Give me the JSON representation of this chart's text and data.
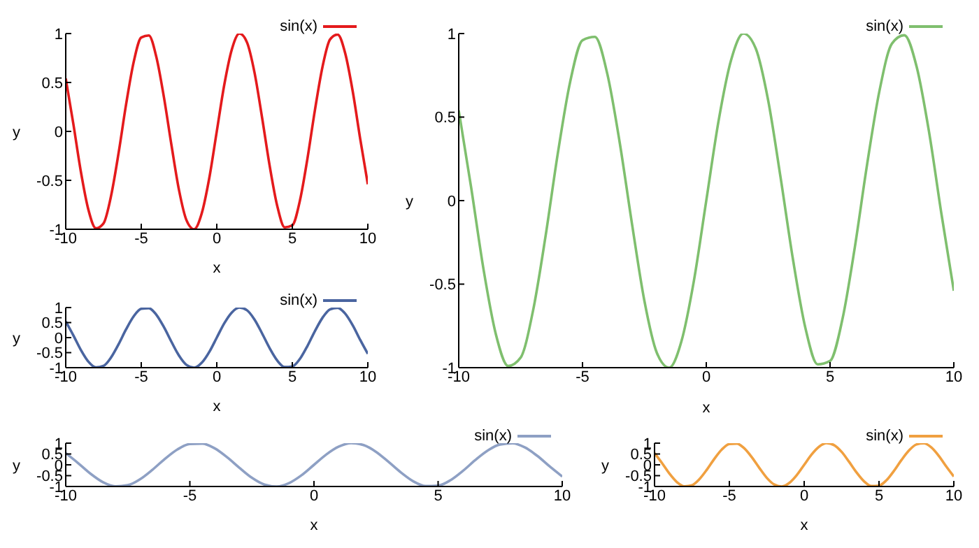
{
  "chart_data": [
    {
      "type": "line",
      "xlabel": "x",
      "ylabel": "y",
      "x": [
        -10,
        -9.5,
        -9,
        -8.5,
        -8,
        -7.5,
        -7,
        -6.5,
        -6,
        -5.5,
        -5,
        -4.5,
        -4,
        -3.5,
        -3,
        -2.5,
        -2,
        -1.5,
        -1,
        -0.5,
        0,
        0.5,
        1,
        1.5,
        2,
        2.5,
        3,
        3.5,
        4,
        4.5,
        5,
        5.5,
        6,
        6.5,
        7,
        7.5,
        8,
        8.5,
        9,
        9.5,
        10
      ],
      "xlim": [
        -10,
        10
      ],
      "ylim": [
        -1,
        1
      ],
      "xticks": [
        -10,
        -5,
        0,
        5,
        10
      ],
      "yticks": [
        -1,
        -0.5,
        0,
        0.5,
        1
      ],
      "legend": "top right",
      "series": [
        {
          "name": "sin(x)",
          "color": "#e41a1c",
          "values": [
            0.54,
            0.08,
            -0.41,
            -0.8,
            -0.99,
            -0.94,
            -0.66,
            -0.22,
            0.28,
            0.71,
            0.96,
            0.98,
            0.76,
            0.35,
            -0.14,
            -0.6,
            -0.91,
            -1,
            -0.84,
            -0.48,
            0,
            0.48,
            0.84,
            1,
            0.91,
            0.6,
            0.14,
            -0.35,
            -0.76,
            -0.98,
            -0.96,
            -0.71,
            -0.28,
            0.22,
            0.66,
            0.94,
            0.99,
            0.8,
            0.41,
            -0.08,
            -0.54
          ]
        }
      ]
    },
    {
      "type": "line",
      "xlabel": "x",
      "ylabel": "y",
      "x": [
        -10,
        -9.5,
        -9,
        -8.5,
        -8,
        -7.5,
        -7,
        -6.5,
        -6,
        -5.5,
        -5,
        -4.5,
        -4,
        -3.5,
        -3,
        -2.5,
        -2,
        -1.5,
        -1,
        -0.5,
        0,
        0.5,
        1,
        1.5,
        2,
        2.5,
        3,
        3.5,
        4,
        4.5,
        5,
        5.5,
        6,
        6.5,
        7,
        7.5,
        8,
        8.5,
        9,
        9.5,
        10
      ],
      "xlim": [
        -10,
        10
      ],
      "ylim": [
        -1,
        1
      ],
      "xticks": [
        -10,
        -5,
        0,
        5,
        10
      ],
      "yticks": [
        -1,
        -0.5,
        0,
        0.5,
        1
      ],
      "legend": "top right",
      "series": [
        {
          "name": "sin(x)",
          "color": "#4a65a0",
          "values": [
            0.54,
            0.08,
            -0.41,
            -0.8,
            -0.99,
            -0.94,
            -0.66,
            -0.22,
            0.28,
            0.71,
            0.96,
            0.98,
            0.76,
            0.35,
            -0.14,
            -0.6,
            -0.91,
            -1,
            -0.84,
            -0.48,
            0,
            0.48,
            0.84,
            1,
            0.91,
            0.6,
            0.14,
            -0.35,
            -0.76,
            -0.98,
            -0.96,
            -0.71,
            -0.28,
            0.22,
            0.66,
            0.94,
            0.99,
            0.8,
            0.41,
            -0.08,
            -0.54
          ]
        }
      ]
    },
    {
      "type": "line",
      "xlabel": "x",
      "ylabel": "y",
      "x": [
        -10,
        -9.5,
        -9,
        -8.5,
        -8,
        -7.5,
        -7,
        -6.5,
        -6,
        -5.5,
        -5,
        -4.5,
        -4,
        -3.5,
        -3,
        -2.5,
        -2,
        -1.5,
        -1,
        -0.5,
        0,
        0.5,
        1,
        1.5,
        2,
        2.5,
        3,
        3.5,
        4,
        4.5,
        5,
        5.5,
        6,
        6.5,
        7,
        7.5,
        8,
        8.5,
        9,
        9.5,
        10
      ],
      "xlim": [
        -10,
        10
      ],
      "ylim": [
        -1,
        1
      ],
      "xticks": [
        -10,
        -5,
        0,
        5,
        10
      ],
      "yticks": [
        -1,
        -0.5,
        0,
        0.5,
        1
      ],
      "legend": "top right",
      "series": [
        {
          "name": "sin(x)",
          "color": "#7fbf6e",
          "values": [
            0.54,
            0.08,
            -0.41,
            -0.8,
            -0.99,
            -0.94,
            -0.66,
            -0.22,
            0.28,
            0.71,
            0.96,
            0.98,
            0.76,
            0.35,
            -0.14,
            -0.6,
            -0.91,
            -1,
            -0.84,
            -0.48,
            0,
            0.48,
            0.84,
            1,
            0.91,
            0.6,
            0.14,
            -0.35,
            -0.76,
            -0.98,
            -0.96,
            -0.71,
            -0.28,
            0.22,
            0.66,
            0.94,
            0.99,
            0.8,
            0.41,
            -0.08,
            -0.54
          ]
        }
      ]
    },
    {
      "type": "line",
      "xlabel": "x",
      "ylabel": "y",
      "x": [
        -10,
        -9.5,
        -9,
        -8.5,
        -8,
        -7.5,
        -7,
        -6.5,
        -6,
        -5.5,
        -5,
        -4.5,
        -4,
        -3.5,
        -3,
        -2.5,
        -2,
        -1.5,
        -1,
        -0.5,
        0,
        0.5,
        1,
        1.5,
        2,
        2.5,
        3,
        3.5,
        4,
        4.5,
        5,
        5.5,
        6,
        6.5,
        7,
        7.5,
        8,
        8.5,
        9,
        9.5,
        10
      ],
      "xlim": [
        -10,
        10
      ],
      "ylim": [
        -1,
        1
      ],
      "xticks": [
        -10,
        -5,
        0,
        5,
        10
      ],
      "yticks": [
        -1,
        -0.5,
        0,
        0.5,
        1
      ],
      "legend": "top right",
      "series": [
        {
          "name": "sin(x)",
          "color": "#8ea0c4",
          "values": [
            0.54,
            0.08,
            -0.41,
            -0.8,
            -0.99,
            -0.94,
            -0.66,
            -0.22,
            0.28,
            0.71,
            0.96,
            0.98,
            0.76,
            0.35,
            -0.14,
            -0.6,
            -0.91,
            -1,
            -0.84,
            -0.48,
            0,
            0.48,
            0.84,
            1,
            0.91,
            0.6,
            0.14,
            -0.35,
            -0.76,
            -0.98,
            -0.96,
            -0.71,
            -0.28,
            0.22,
            0.66,
            0.94,
            0.99,
            0.8,
            0.41,
            -0.08,
            -0.54
          ]
        }
      ]
    },
    {
      "type": "line",
      "xlabel": "x",
      "ylabel": "y",
      "x": [
        -10,
        -9.5,
        -9,
        -8.5,
        -8,
        -7.5,
        -7,
        -6.5,
        -6,
        -5.5,
        -5,
        -4.5,
        -4,
        -3.5,
        -3,
        -2.5,
        -2,
        -1.5,
        -1,
        -0.5,
        0,
        0.5,
        1,
        1.5,
        2,
        2.5,
        3,
        3.5,
        4,
        4.5,
        5,
        5.5,
        6,
        6.5,
        7,
        7.5,
        8,
        8.5,
        9,
        9.5,
        10
      ],
      "xlim": [
        -10,
        10
      ],
      "ylim": [
        -1,
        1
      ],
      "xticks": [
        -10,
        -5,
        0,
        5,
        10
      ],
      "yticks": [
        -1,
        -0.5,
        0,
        0.5,
        1
      ],
      "legend": "top right",
      "series": [
        {
          "name": "sin(x)",
          "color": "#f0a040",
          "values": [
            0.54,
            0.08,
            -0.41,
            -0.8,
            -0.99,
            -0.94,
            -0.66,
            -0.22,
            0.28,
            0.71,
            0.96,
            0.98,
            0.76,
            0.35,
            -0.14,
            -0.6,
            -0.91,
            -1,
            -0.84,
            -0.48,
            0,
            0.48,
            0.84,
            1,
            0.91,
            0.6,
            0.14,
            -0.35,
            -0.76,
            -0.98,
            -0.96,
            -0.71,
            -0.28,
            0.22,
            0.66,
            0.94,
            0.99,
            0.8,
            0.41,
            -0.08,
            -0.54
          ]
        }
      ]
    }
  ]
}
